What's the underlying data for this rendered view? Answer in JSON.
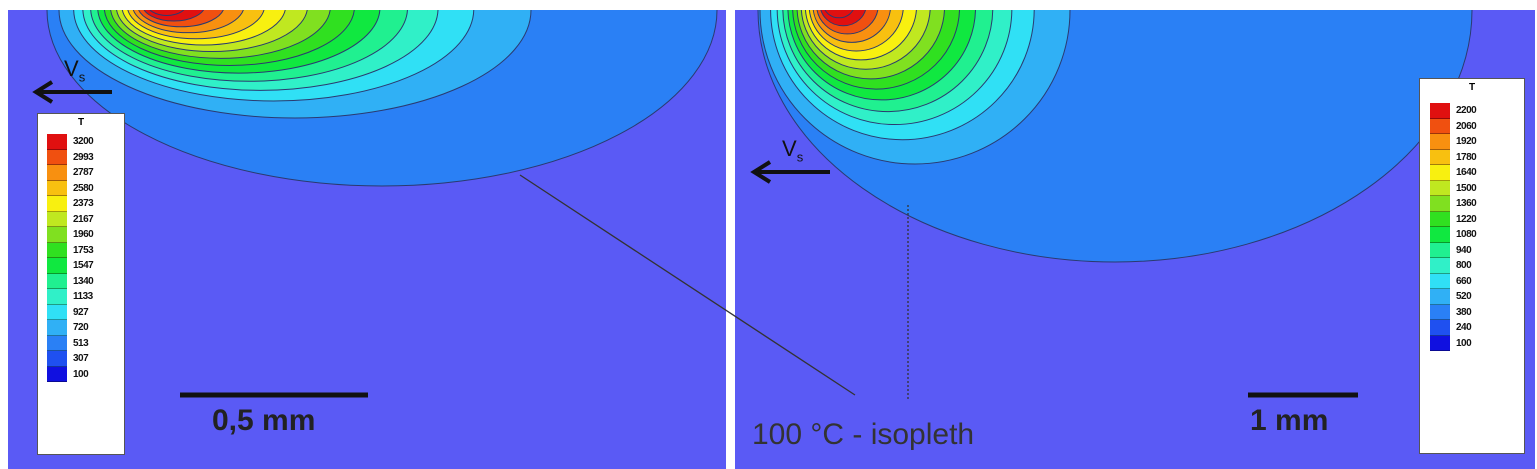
{
  "colors": {
    "background": "#5a5af5",
    "palette": [
      "#1010e0",
      "#1f50f0",
      "#2a80f5",
      "#30b0f5",
      "#30e0f5",
      "#30f0c8",
      "#20f090",
      "#10e840",
      "#30e020",
      "#80e020",
      "#c0e820",
      "#f8f010",
      "#f8c010",
      "#f89010",
      "#f05010",
      "#e01010"
    ]
  },
  "left_panel": {
    "velocity_label": "V",
    "velocity_subscript": "s",
    "scale_bar_label": "0,5 mm",
    "legend": {
      "title": "T",
      "values": [
        "3200",
        "2993",
        "2787",
        "2580",
        "2373",
        "2167",
        "1960",
        "1753",
        "1547",
        "1340",
        "1133",
        "927",
        "720",
        "513",
        "307",
        "100"
      ]
    }
  },
  "right_panel": {
    "velocity_label": "V",
    "velocity_subscript": "s",
    "scale_bar_label": "1 mm",
    "legend": {
      "title": "T",
      "values": [
        "2200",
        "2060",
        "1920",
        "1780",
        "1640",
        "1500",
        "1360",
        "1220",
        "1080",
        "940",
        "800",
        "660",
        "520",
        "380",
        "240",
        "100"
      ]
    }
  },
  "annotation": "100 °C - isopleth"
}
